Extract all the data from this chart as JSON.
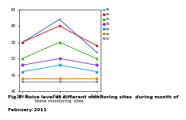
{
  "sites": [
    "Site 1",
    "Site 2",
    "Site 3"
  ],
  "xlabel": "Noise monitoring  sites",
  "series": [
    {
      "label": "S1",
      "values": [
        55,
        62,
        52
      ],
      "color": "#3366cc",
      "marker": "+",
      "linestyle": "-"
    },
    {
      "label": "S2",
      "values": [
        55,
        60,
        54
      ],
      "color": "#cc2222",
      "marker": "s",
      "linestyle": "-"
    },
    {
      "label": "S3",
      "values": [
        50,
        55,
        50
      ],
      "color": "#44aa22",
      "marker": "^",
      "linestyle": "-"
    },
    {
      "label": "S4",
      "values": [
        48,
        50,
        48
      ],
      "color": "#8844cc",
      "marker": "D",
      "linestyle": "-"
    },
    {
      "label": "S5",
      "values": [
        46,
        48,
        46
      ],
      "color": "#22aacc",
      "marker": "o",
      "linestyle": "-"
    },
    {
      "label": "S6",
      "values": [
        44,
        44,
        44
      ],
      "color": "#ee7700",
      "marker": "s",
      "linestyle": "-"
    },
    {
      "label": "S7",
      "values": [
        43,
        43,
        43
      ],
      "color": "#888899",
      "marker": "v",
      "linestyle": "-"
    }
  ],
  "ylim": [
    40,
    65
  ],
  "yticks": [
    40,
    45,
    50,
    55,
    60,
    65
  ],
  "caption_line1": "Fig.3: Noise level at different monitoring sites  during month of",
  "caption_line2": "February 2011",
  "caption_fontsize": 4.2,
  "bg_color": "#ffffff"
}
